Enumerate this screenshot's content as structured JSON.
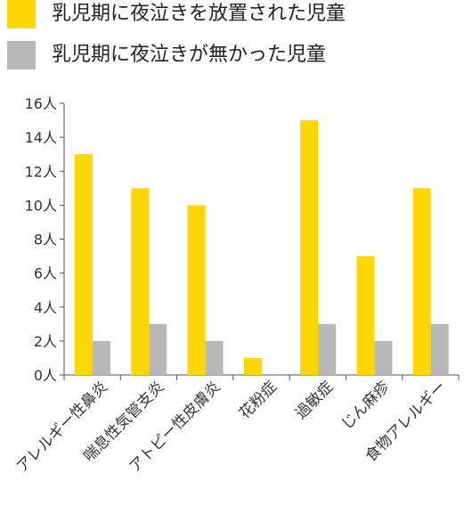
{
  "chart_data": {
    "type": "bar",
    "categories": [
      "アレルギー性鼻炎",
      "喘息性気管支炎",
      "アトピー性皮膚炎",
      "花粉症",
      "過敏症",
      "じん麻疹",
      "食物アレルギー"
    ],
    "series": [
      {
        "name": "乳児期に夜泣きを放置された児童",
        "values": [
          13,
          11,
          10,
          1,
          15,
          7,
          11
        ],
        "color": "#FFD700"
      },
      {
        "name": "乳児期に夜泣きが無かった児童",
        "values": [
          2,
          3,
          2,
          0,
          3,
          2,
          3
        ],
        "color": "#B8B8B8"
      }
    ],
    "yticks": [
      "0人",
      "2人",
      "4人",
      "6人",
      "8人",
      "10人",
      "12人",
      "14人",
      "16人"
    ],
    "ylim": [
      0,
      16
    ],
    "grid": false,
    "legend": "top-left"
  }
}
